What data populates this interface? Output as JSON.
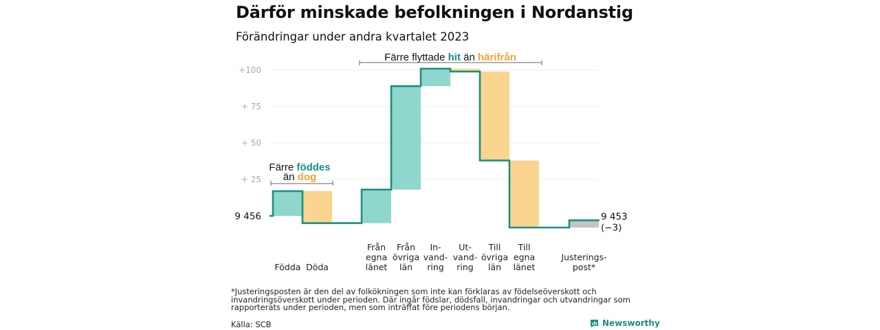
{
  "title": "Därför minskade befolkningen i Nordanstig",
  "subtitle": "Förändringar under andra kvartalet 2023",
  "chart_data": {
    "type": "waterfall",
    "start": 9456,
    "end": 9453,
    "end_change": "(−3)",
    "start_label": "9  456",
    "end_label": "9 453",
    "y_ticks": [
      {
        "value": 25,
        "label": "+  25"
      },
      {
        "value": 50,
        "label": "+  50"
      },
      {
        "value": 75,
        "label": "+  75"
      },
      {
        "value": 100,
        "label": "+100"
      }
    ],
    "steps": [
      {
        "label_lines": [
          "Födda"
        ],
        "value": 17,
        "color": "#8fd6cd"
      },
      {
        "label_lines": [
          "Döda"
        ],
        "value": -22,
        "color": "#fbd48f"
      },
      {
        "label_lines": [
          "Från",
          "egna",
          "länet"
        ],
        "value": 23,
        "color": "#8fd6cd"
      },
      {
        "label_lines": [
          "Från",
          "övriga",
          "län"
        ],
        "value": 71,
        "color": "#8fd6cd"
      },
      {
        "label_lines": [
          "In-",
          "vand-",
          "ring"
        ],
        "value": 12,
        "color": "#8fd6cd"
      },
      {
        "label_lines": [
          "Ut-",
          "vand-",
          "ring"
        ],
        "value": -2,
        "color": "#fbd48f"
      },
      {
        "label_lines": [
          "Till",
          "övriga",
          "län"
        ],
        "value": -61,
        "color": "#fbd48f"
      },
      {
        "label_lines": [
          "Till",
          "egna",
          "länet"
        ],
        "value": -46,
        "color": "#fbd48f"
      },
      {
        "label_lines": [
          "Justerings-",
          "post*"
        ],
        "value": 5,
        "color": "#c4c4c4"
      }
    ],
    "line_color": "#1a8f80",
    "annotations": {
      "births": {
        "line1_prefix": "Färre ",
        "line1_highlight": "föddes",
        "line2_prefix": "än ",
        "line2_highlight": "dog"
      },
      "migration": {
        "prefix": "Färre flyttade ",
        "highlight1": "hit",
        "middle": "  än ",
        "highlight2": "härifrån"
      }
    }
  },
  "footnote": "*Justeringsposten är den del av folkökningen som inte kan förklaras av födelseöverskott och invandringsöverskott under perioden. Där ingår födslar, dödsfall, invandringar och utvandringar som rapporterats under perioden, men som inträffat före periodens början.",
  "source": "Källa: SCB",
  "brand": "Newsworthy",
  "colors": {
    "teal": "#1a8f80",
    "green_bar": "#8fd6cd",
    "orange_bar": "#fbd48f",
    "gray_bar": "#c4c4c4",
    "orange_text": "#f2a533"
  }
}
